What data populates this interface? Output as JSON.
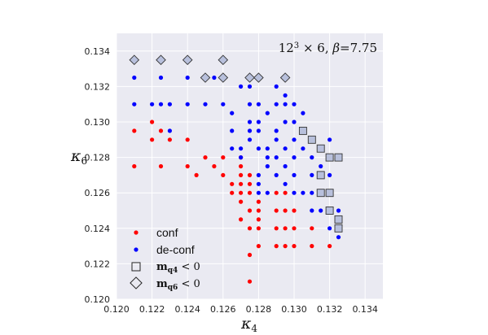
{
  "chart_data": {
    "type": "scatter",
    "annotation": "12³ × 6,  β = 7.75",
    "xlabel": "κ4",
    "ylabel": "κ6",
    "xlim": [
      0.12,
      0.135
    ],
    "ylim": [
      0.12,
      0.135
    ],
    "xticks": [
      "0.120",
      "0.122",
      "0.124",
      "0.126",
      "0.128",
      "0.130",
      "0.132",
      "0.134"
    ],
    "yticks": [
      "0.120",
      "0.122",
      "0.124",
      "0.126",
      "0.128",
      "0.130",
      "0.132",
      "0.134"
    ],
    "grid": true,
    "legend_position": "lower-left",
    "colors": {
      "conf": "#ff0000",
      "de_conf": "#0000ff",
      "background": "#eaeaf2",
      "grid": "#ffffff"
    },
    "legend": [
      {
        "label": "conf",
        "marker": "dot",
        "color": "#ff0000"
      },
      {
        "label": "de-conf",
        "marker": "dot",
        "color": "#0000ff"
      },
      {
        "label": "m",
        "sub": "q4",
        "tail": " < 0",
        "marker": "square"
      },
      {
        "label": "m",
        "sub": "q6",
        "tail": " < 0",
        "marker": "diamond"
      }
    ],
    "series": [
      {
        "name": "conf",
        "color": "#ff0000",
        "points": [
          [
            0.121,
            0.1295
          ],
          [
            0.121,
            0.1275
          ],
          [
            0.122,
            0.13
          ],
          [
            0.122,
            0.129
          ],
          [
            0.1225,
            0.1295
          ],
          [
            0.1225,
            0.1275
          ],
          [
            0.123,
            0.129
          ],
          [
            0.124,
            0.129
          ],
          [
            0.124,
            0.1275
          ],
          [
            0.1245,
            0.127
          ],
          [
            0.125,
            0.128
          ],
          [
            0.1255,
            0.1275
          ],
          [
            0.126,
            0.128
          ],
          [
            0.126,
            0.127
          ],
          [
            0.1265,
            0.1265
          ],
          [
            0.1265,
            0.126
          ],
          [
            0.127,
            0.128
          ],
          [
            0.127,
            0.1275
          ],
          [
            0.127,
            0.127
          ],
          [
            0.127,
            0.1265
          ],
          [
            0.127,
            0.126
          ],
          [
            0.127,
            0.1255
          ],
          [
            0.127,
            0.1245
          ],
          [
            0.1275,
            0.127
          ],
          [
            0.1275,
            0.1265
          ],
          [
            0.1275,
            0.126
          ],
          [
            0.1275,
            0.125
          ],
          [
            0.1275,
            0.124
          ],
          [
            0.1275,
            0.1225
          ],
          [
            0.1275,
            0.121
          ],
          [
            0.128,
            0.1255
          ],
          [
            0.128,
            0.125
          ],
          [
            0.128,
            0.1245
          ],
          [
            0.128,
            0.124
          ],
          [
            0.128,
            0.123
          ],
          [
            0.129,
            0.126
          ],
          [
            0.129,
            0.125
          ],
          [
            0.129,
            0.124
          ],
          [
            0.129,
            0.123
          ],
          [
            0.1295,
            0.126
          ],
          [
            0.1295,
            0.125
          ],
          [
            0.1295,
            0.124
          ],
          [
            0.1295,
            0.123
          ],
          [
            0.13,
            0.125
          ],
          [
            0.13,
            0.124
          ],
          [
            0.13,
            0.123
          ],
          [
            0.131,
            0.124
          ],
          [
            0.131,
            0.123
          ],
          [
            0.132,
            0.123
          ]
        ]
      },
      {
        "name": "de-conf",
        "color": "#0000ff",
        "points": [
          [
            0.121,
            0.1335
          ],
          [
            0.121,
            0.1325
          ],
          [
            0.121,
            0.131
          ],
          [
            0.1225,
            0.1335
          ],
          [
            0.1225,
            0.1325
          ],
          [
            0.122,
            0.131
          ],
          [
            0.1225,
            0.131
          ],
          [
            0.123,
            0.131
          ],
          [
            0.124,
            0.1335
          ],
          [
            0.124,
            0.1325
          ],
          [
            0.124,
            0.131
          ],
          [
            0.123,
            0.1295
          ],
          [
            0.125,
            0.1325
          ],
          [
            0.1255,
            0.1325
          ],
          [
            0.126,
            0.1335
          ],
          [
            0.126,
            0.1325
          ],
          [
            0.125,
            0.131
          ],
          [
            0.126,
            0.131
          ],
          [
            0.1265,
            0.1305
          ],
          [
            0.127,
            0.132
          ],
          [
            0.1275,
            0.1325
          ],
          [
            0.1275,
            0.132
          ],
          [
            0.128,
            0.1325
          ],
          [
            0.128,
            0.131
          ],
          [
            0.1275,
            0.131
          ],
          [
            0.1275,
            0.13
          ],
          [
            0.1265,
            0.1295
          ],
          [
            0.1275,
            0.1295
          ],
          [
            0.128,
            0.13
          ],
          [
            0.128,
            0.1295
          ],
          [
            0.1265,
            0.1285
          ],
          [
            0.127,
            0.1285
          ],
          [
            0.128,
            0.1285
          ],
          [
            0.127,
            0.128
          ],
          [
            0.1285,
            0.128
          ],
          [
            0.1275,
            0.129
          ],
          [
            0.1285,
            0.1305
          ],
          [
            0.129,
            0.131
          ],
          [
            0.129,
            0.132
          ],
          [
            0.1295,
            0.1325
          ],
          [
            0.1295,
            0.131
          ],
          [
            0.1295,
            0.1315
          ],
          [
            0.1295,
            0.13
          ],
          [
            0.13,
            0.131
          ],
          [
            0.13,
            0.13
          ],
          [
            0.1305,
            0.1305
          ],
          [
            0.129,
            0.1295
          ],
          [
            0.129,
            0.129
          ],
          [
            0.1295,
            0.1285
          ],
          [
            0.13,
            0.129
          ],
          [
            0.1305,
            0.1295
          ],
          [
            0.1285,
            0.1285
          ],
          [
            0.1285,
            0.1275
          ],
          [
            0.129,
            0.128
          ],
          [
            0.1295,
            0.1275
          ],
          [
            0.13,
            0.128
          ],
          [
            0.1305,
            0.1285
          ],
          [
            0.131,
            0.129
          ],
          [
            0.129,
            0.127
          ],
          [
            0.1295,
            0.1265
          ],
          [
            0.13,
            0.127
          ],
          [
            0.131,
            0.128
          ],
          [
            0.131,
            0.127
          ],
          [
            0.1315,
            0.1285
          ],
          [
            0.128,
            0.1265
          ],
          [
            0.128,
            0.127
          ],
          [
            0.128,
            0.126
          ],
          [
            0.1285,
            0.126
          ],
          [
            0.13,
            0.126
          ],
          [
            0.1305,
            0.126
          ],
          [
            0.131,
            0.126
          ],
          [
            0.1315,
            0.126
          ],
          [
            0.132,
            0.126
          ],
          [
            0.132,
            0.127
          ],
          [
            0.132,
            0.128
          ],
          [
            0.1315,
            0.1275
          ],
          [
            0.132,
            0.129
          ],
          [
            0.1325,
            0.128
          ],
          [
            0.1305,
            0.1295
          ],
          [
            0.1315,
            0.125
          ],
          [
            0.132,
            0.125
          ],
          [
            0.1325,
            0.125
          ],
          [
            0.131,
            0.125
          ],
          [
            0.1325,
            0.1245
          ],
          [
            0.132,
            0.124
          ],
          [
            0.1325,
            0.124
          ],
          [
            0.1325,
            0.1235
          ]
        ]
      }
    ],
    "markers_mq4_lt_0": [
      [
        0.1305,
        0.1295
      ],
      [
        0.131,
        0.129
      ],
      [
        0.1315,
        0.1285
      ],
      [
        0.132,
        0.128
      ],
      [
        0.1325,
        0.128
      ],
      [
        0.1315,
        0.127
      ],
      [
        0.132,
        0.126
      ],
      [
        0.1315,
        0.126
      ],
      [
        0.132,
        0.125
      ],
      [
        0.1325,
        0.1245
      ],
      [
        0.1325,
        0.124
      ]
    ],
    "markers_mq6_lt_0": [
      [
        0.121,
        0.1335
      ],
      [
        0.1225,
        0.1335
      ],
      [
        0.124,
        0.1335
      ],
      [
        0.126,
        0.1335
      ],
      [
        0.125,
        0.1325
      ],
      [
        0.126,
        0.1325
      ],
      [
        0.1275,
        0.1325
      ],
      [
        0.128,
        0.1325
      ],
      [
        0.1295,
        0.1325
      ]
    ]
  }
}
